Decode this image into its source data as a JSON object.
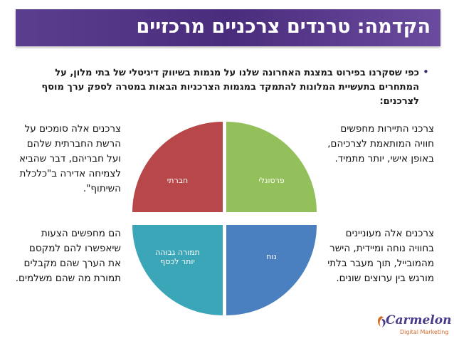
{
  "title": "הקדמה: טרנדים צרכניים מרכזיים",
  "intro": "כפי שסקרנו בפירוט במצגת האחרונה שלנו על מגמות בשיווק דיגיטלי של בתי מלון, על המתחרים בתעשיית המלונות להתמקד במגמות הצרכניות הבאות במטרה לספק ערך מוסף לצרכנים:",
  "bullet": "•",
  "quadrants": {
    "social": "חברתי",
    "personal": "פרסונלי",
    "high_return": "תמורה גבוהה יותר לכסף",
    "convenient": "נוח"
  },
  "colors": {
    "title_bar": "#4a2c7d",
    "social": "#b8474a",
    "personal": "#93c05a",
    "high_return": "#3aa6b7",
    "convenient": "#4a7fc0"
  },
  "descriptions": {
    "social": "צרכנים אלה סומכים על הרשת החברתית שלהם ועל חבריהם, דבר שהביא לצמיחה אדירה ב\"כלכלת השיתוף\".",
    "personal": "צרכני התיירות מחפשים חוויה המותאמת לצרכיהם, באופן אישי, יותר מתמיד.",
    "high_return": "הם מחפשים הצעות שיאפשרו להם למקסם את הערך שהם מקבלים תמורת מה שהם משלמים.",
    "convenient": "צרכנים אלה מעוניינים בחוויה נוחה ומיידית, הישר מהמובייל, תוך מעבר בלתי מורגש בין ערוצים שונים."
  },
  "logo": {
    "name": "Carmelon",
    "tagline": "Digital Marketing"
  }
}
